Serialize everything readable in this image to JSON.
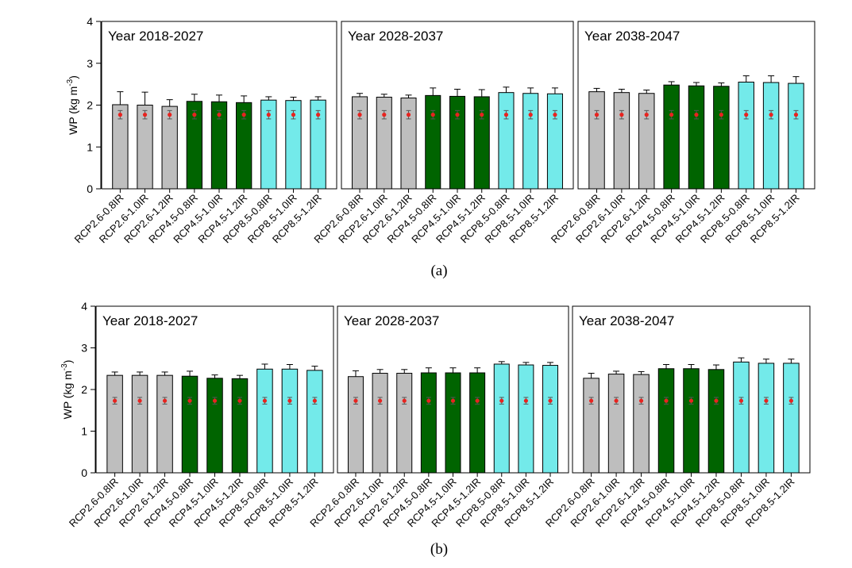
{
  "colors": {
    "gray": "#bebebe",
    "green": "#006400",
    "cyan": "#73eaea",
    "obs": "#e8231f"
  },
  "chart_data": [
    {
      "type": "bar",
      "caption": "(a)",
      "ylabel": "WP (kg m",
      "ylabel_sup": "-3",
      "ylabel_end": ")",
      "ylim": [
        0,
        4
      ],
      "yticks": [
        "0",
        "1",
        "2",
        "3",
        "4"
      ],
      "categories": [
        "RCP2.6-0.8IR",
        "RCP2.6-1.0IR",
        "RCP2.6-1.2IR",
        "RCP4.5-0.8IR",
        "RCP4.5-1.0IR",
        "RCP4.5-1.2IR",
        "RCP8.5-0.8IR",
        "RCP8.5-1.0IR",
        "RCP8.5-1.2IR"
      ],
      "bar_colors": [
        "gray",
        "gray",
        "gray",
        "green",
        "green",
        "green",
        "cyan",
        "cyan",
        "cyan"
      ],
      "panels": [
        {
          "title": "Year 2018-2027",
          "values": [
            2.01,
            2.0,
            1.97,
            2.09,
            2.08,
            2.06,
            2.12,
            2.11,
            2.12
          ],
          "errors": [
            0.31,
            0.31,
            0.16,
            0.17,
            0.16,
            0.16,
            0.08,
            0.08,
            0.08
          ],
          "obs": [
            1.77,
            1.77,
            1.77,
            1.77,
            1.77,
            1.77,
            1.77,
            1.77,
            1.77
          ],
          "obs_err": [
            0.1,
            0.1,
            0.1,
            0.1,
            0.1,
            0.1,
            0.1,
            0.1,
            0.1
          ]
        },
        {
          "title": "Year 2028-2037",
          "values": [
            2.2,
            2.19,
            2.17,
            2.23,
            2.21,
            2.2,
            2.3,
            2.28,
            2.27
          ],
          "errors": [
            0.08,
            0.07,
            0.07,
            0.18,
            0.17,
            0.17,
            0.13,
            0.13,
            0.14
          ],
          "obs": [
            1.77,
            1.77,
            1.77,
            1.77,
            1.77,
            1.77,
            1.77,
            1.77,
            1.77
          ],
          "obs_err": [
            0.1,
            0.1,
            0.1,
            0.1,
            0.1,
            0.1,
            0.1,
            0.1,
            0.1
          ]
        },
        {
          "title": "Year 2038-2047",
          "values": [
            2.32,
            2.3,
            2.28,
            2.48,
            2.46,
            2.45,
            2.55,
            2.54,
            2.52
          ],
          "errors": [
            0.08,
            0.08,
            0.08,
            0.08,
            0.08,
            0.08,
            0.15,
            0.16,
            0.16
          ],
          "obs": [
            1.77,
            1.77,
            1.77,
            1.77,
            1.77,
            1.77,
            1.77,
            1.77,
            1.77
          ],
          "obs_err": [
            0.1,
            0.1,
            0.1,
            0.1,
            0.1,
            0.1,
            0.1,
            0.1,
            0.1
          ]
        }
      ]
    },
    {
      "type": "bar",
      "caption": "(b)",
      "ylabel": "WP (kg m",
      "ylabel_sup": "-3",
      "ylabel_end": ")",
      "ylim": [
        0,
        4
      ],
      "yticks": [
        "0",
        "1",
        "2",
        "3",
        "4"
      ],
      "categories": [
        "RCP2.6-0.8IR",
        "RCP2.6-1.0IR",
        "RCP2.6-1.2IR",
        "RCP4.5-0.8IR",
        "RCP4.5-1.0IR",
        "RCP4.5-1.2IR",
        "RCP8.5-0.8IR",
        "RCP8.5-1.0IR",
        "RCP8.5-1.2IR"
      ],
      "bar_colors": [
        "gray",
        "gray",
        "gray",
        "green",
        "green",
        "green",
        "cyan",
        "cyan",
        "cyan"
      ],
      "panels": [
        {
          "title": "Year 2018-2027",
          "values": [
            2.34,
            2.34,
            2.34,
            2.32,
            2.27,
            2.26,
            2.49,
            2.49,
            2.46
          ],
          "errors": [
            0.08,
            0.08,
            0.08,
            0.12,
            0.08,
            0.08,
            0.12,
            0.11,
            0.1
          ],
          "obs": [
            1.73,
            1.73,
            1.73,
            1.73,
            1.73,
            1.73,
            1.73,
            1.73,
            1.73
          ],
          "obs_err": [
            0.08,
            0.08,
            0.08,
            0.08,
            0.08,
            0.08,
            0.08,
            0.08,
            0.08
          ]
        },
        {
          "title": "Year 2028-2037",
          "values": [
            2.31,
            2.39,
            2.39,
            2.4,
            2.4,
            2.4,
            2.61,
            2.59,
            2.58
          ],
          "errors": [
            0.14,
            0.09,
            0.09,
            0.12,
            0.12,
            0.12,
            0.06,
            0.06,
            0.07
          ],
          "obs": [
            1.73,
            1.73,
            1.73,
            1.73,
            1.73,
            1.73,
            1.73,
            1.73,
            1.73
          ],
          "obs_err": [
            0.08,
            0.08,
            0.08,
            0.08,
            0.08,
            0.08,
            0.08,
            0.08,
            0.08
          ]
        },
        {
          "title": "Year 2038-2047",
          "values": [
            2.27,
            2.37,
            2.36,
            2.5,
            2.5,
            2.48,
            2.66,
            2.63,
            2.63
          ],
          "errors": [
            0.12,
            0.07,
            0.07,
            0.1,
            0.1,
            0.11,
            0.1,
            0.1,
            0.1
          ],
          "obs": [
            1.73,
            1.73,
            1.73,
            1.73,
            1.73,
            1.73,
            1.73,
            1.73,
            1.73
          ],
          "obs_err": [
            0.08,
            0.08,
            0.08,
            0.08,
            0.08,
            0.08,
            0.08,
            0.08,
            0.08
          ]
        }
      ]
    }
  ]
}
